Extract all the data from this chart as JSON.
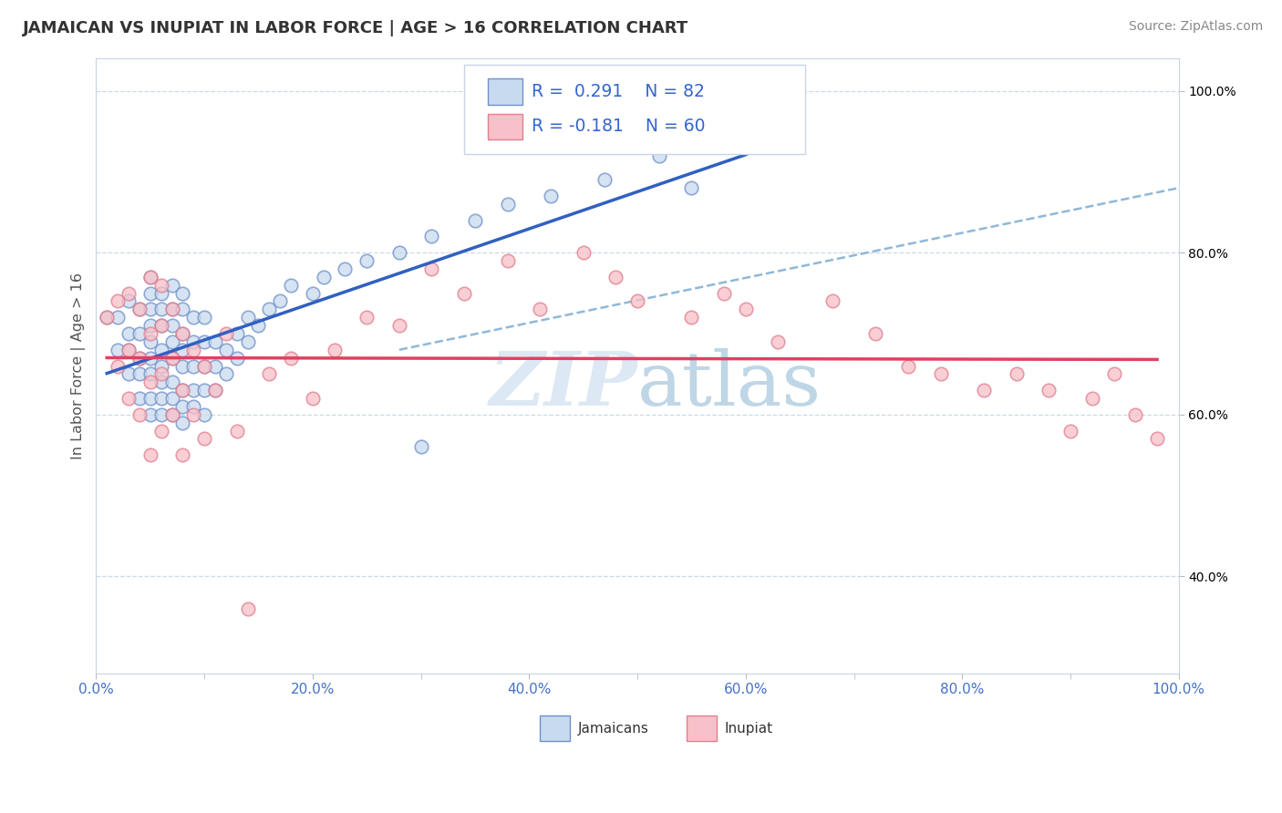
{
  "title": "JAMAICAN VS INUPIAT IN LABOR FORCE | AGE > 16 CORRELATION CHART",
  "source_text": "Source: ZipAtlas.com",
  "ylabel": "In Labor Force | Age > 16",
  "xmin": 0.0,
  "xmax": 1.0,
  "ymin": 0.28,
  "ymax": 1.04,
  "legend_label1": "Jamaicans",
  "legend_label2": "Inupiat",
  "R1": 0.291,
  "N1": 82,
  "R2": -0.181,
  "N2": 60,
  "color_jamaican_fill": "#c8daf0",
  "color_jamaican_edge": "#7090c8",
  "color_inupiat_fill": "#f8c0c8",
  "color_inupiat_edge": "#e08090",
  "color_line1": "#3060c0",
  "color_line2": "#e04060",
  "color_trend_dashed": "#90b8d8",
  "watermark_color": "#dce8f4",
  "ytick_labels": [
    "40.0%",
    "60.0%",
    "80.0%",
    "100.0%"
  ],
  "ytick_values": [
    0.4,
    0.6,
    0.8,
    1.0
  ],
  "xtick_labels": [
    "0.0%",
    "20.0%",
    "40.0%",
    "60.0%",
    "80.0%",
    "100.0%"
  ],
  "xtick_values": [
    0.0,
    0.2,
    0.4,
    0.6,
    0.8,
    1.0
  ],
  "jamaican_x": [
    0.01,
    0.02,
    0.02,
    0.03,
    0.03,
    0.03,
    0.03,
    0.04,
    0.04,
    0.04,
    0.04,
    0.04,
    0.05,
    0.05,
    0.05,
    0.05,
    0.05,
    0.05,
    0.05,
    0.05,
    0.05,
    0.06,
    0.06,
    0.06,
    0.06,
    0.06,
    0.06,
    0.06,
    0.06,
    0.07,
    0.07,
    0.07,
    0.07,
    0.07,
    0.07,
    0.07,
    0.07,
    0.08,
    0.08,
    0.08,
    0.08,
    0.08,
    0.08,
    0.08,
    0.08,
    0.09,
    0.09,
    0.09,
    0.09,
    0.09,
    0.1,
    0.1,
    0.1,
    0.1,
    0.1,
    0.11,
    0.11,
    0.11,
    0.12,
    0.12,
    0.13,
    0.13,
    0.14,
    0.14,
    0.15,
    0.16,
    0.17,
    0.18,
    0.2,
    0.21,
    0.23,
    0.25,
    0.28,
    0.31,
    0.35,
    0.38,
    0.42,
    0.47,
    0.3,
    0.52,
    0.55,
    0.6
  ],
  "jamaican_y": [
    0.72,
    0.68,
    0.72,
    0.65,
    0.68,
    0.7,
    0.74,
    0.62,
    0.65,
    0.67,
    0.7,
    0.73,
    0.6,
    0.62,
    0.65,
    0.67,
    0.69,
    0.71,
    0.73,
    0.75,
    0.77,
    0.6,
    0.62,
    0.64,
    0.66,
    0.68,
    0.71,
    0.73,
    0.75,
    0.6,
    0.62,
    0.64,
    0.67,
    0.69,
    0.71,
    0.73,
    0.76,
    0.59,
    0.61,
    0.63,
    0.66,
    0.68,
    0.7,
    0.73,
    0.75,
    0.61,
    0.63,
    0.66,
    0.69,
    0.72,
    0.6,
    0.63,
    0.66,
    0.69,
    0.72,
    0.63,
    0.66,
    0.69,
    0.65,
    0.68,
    0.67,
    0.7,
    0.69,
    0.72,
    0.71,
    0.73,
    0.74,
    0.76,
    0.75,
    0.77,
    0.78,
    0.79,
    0.8,
    0.82,
    0.84,
    0.86,
    0.87,
    0.89,
    0.56,
    0.92,
    0.88,
    0.93
  ],
  "inupiat_x": [
    0.01,
    0.02,
    0.02,
    0.03,
    0.03,
    0.03,
    0.04,
    0.04,
    0.04,
    0.05,
    0.05,
    0.05,
    0.05,
    0.06,
    0.06,
    0.06,
    0.06,
    0.07,
    0.07,
    0.07,
    0.08,
    0.08,
    0.08,
    0.09,
    0.09,
    0.1,
    0.1,
    0.11,
    0.12,
    0.13,
    0.14,
    0.16,
    0.18,
    0.2,
    0.22,
    0.25,
    0.28,
    0.31,
    0.34,
    0.38,
    0.41,
    0.45,
    0.48,
    0.5,
    0.55,
    0.58,
    0.6,
    0.63,
    0.68,
    0.72,
    0.75,
    0.78,
    0.82,
    0.85,
    0.88,
    0.9,
    0.92,
    0.94,
    0.96,
    0.98
  ],
  "inupiat_y": [
    0.72,
    0.66,
    0.74,
    0.62,
    0.68,
    0.75,
    0.6,
    0.67,
    0.73,
    0.55,
    0.64,
    0.7,
    0.77,
    0.58,
    0.65,
    0.71,
    0.76,
    0.6,
    0.67,
    0.73,
    0.55,
    0.63,
    0.7,
    0.6,
    0.68,
    0.57,
    0.66,
    0.63,
    0.7,
    0.58,
    0.36,
    0.65,
    0.67,
    0.62,
    0.68,
    0.72,
    0.71,
    0.78,
    0.75,
    0.79,
    0.73,
    0.8,
    0.77,
    0.74,
    0.72,
    0.75,
    0.73,
    0.69,
    0.74,
    0.7,
    0.66,
    0.65,
    0.63,
    0.65,
    0.63,
    0.58,
    0.62,
    0.65,
    0.6,
    0.57
  ]
}
